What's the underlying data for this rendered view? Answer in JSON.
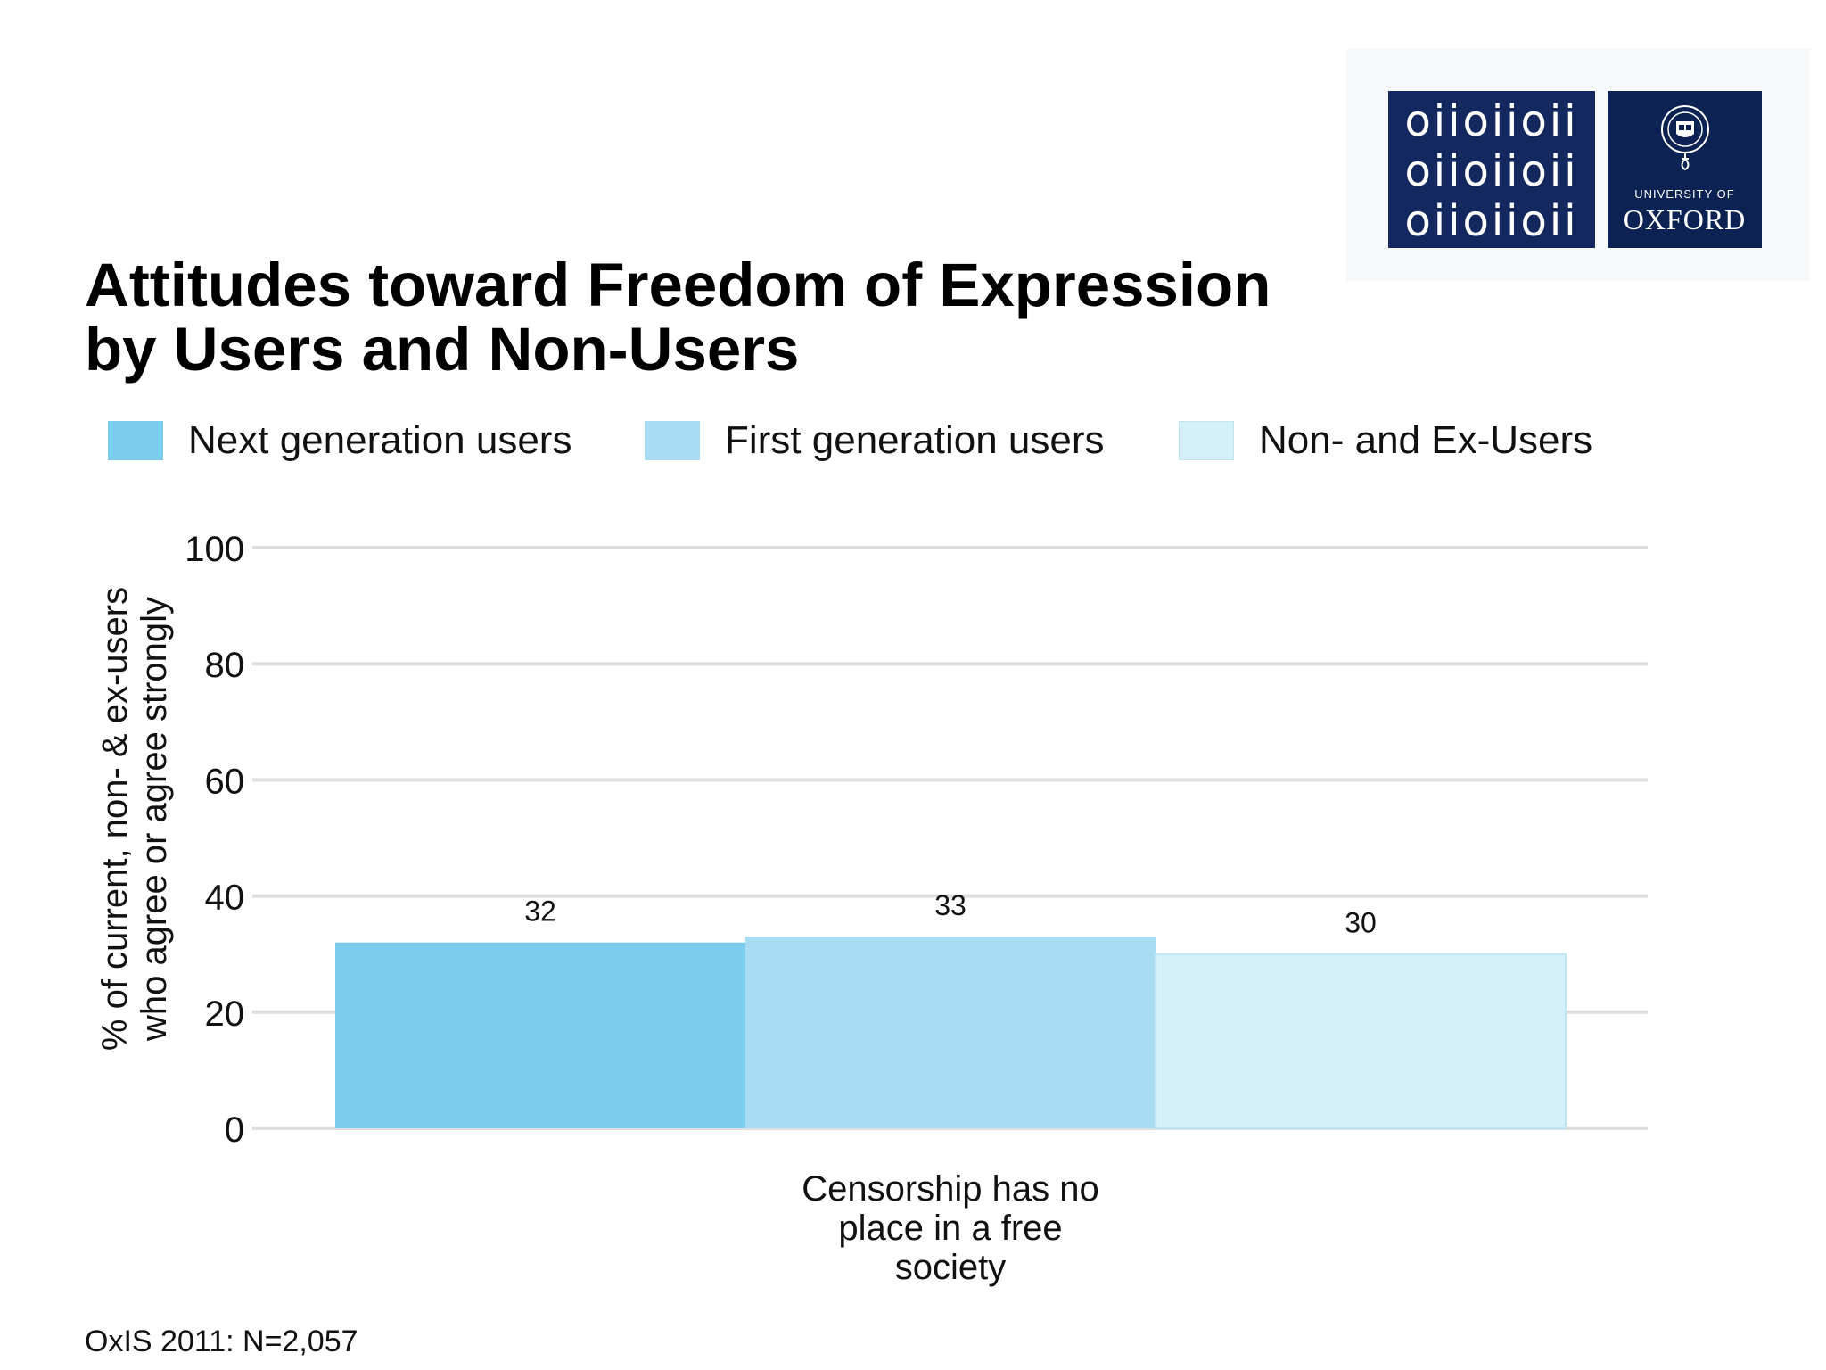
{
  "title": {
    "line1": "Attitudes toward Freedom of Expression",
    "line2": "by Users and Non-Users"
  },
  "logo": {
    "oii_rows": [
      "oiioiioii",
      "oiioiioii",
      "oiioiioii"
    ],
    "university_of": "UNIVERSITY OF",
    "oxford": "OXFORD",
    "oii_color": "#13285f",
    "oxford_color": "#0b2253"
  },
  "legend": [
    {
      "label": "Next generation users",
      "color": "#7bcdee"
    },
    {
      "label": "First generation users",
      "color": "#a8dcf3"
    },
    {
      "label": "Non- and Ex-Users",
      "color": "#d3eff8"
    }
  ],
  "y_axis_label": {
    "line1": "% of current, non- & ex-users",
    "line2": "who agree or agree strongly"
  },
  "footnote": "OxIS 2011: N=2,057",
  "chart_data": {
    "type": "bar",
    "categories": [
      "Censorship has no place in a free society"
    ],
    "category_label_lines": [
      "Censorship has no",
      "place in a free",
      "society"
    ],
    "series": [
      {
        "name": "Next generation users",
        "values": [
          32
        ],
        "color": "#7bcdee"
      },
      {
        "name": "First generation users",
        "values": [
          33
        ],
        "color": "#a8dcf3"
      },
      {
        "name": "Non- and Ex-Users",
        "values": [
          30
        ],
        "color": "#d3eff8"
      }
    ],
    "title": "Attitudes toward Freedom of Expression by Users and Non-Users",
    "xlabel": "",
    "ylabel": "% of current, non- & ex-users who agree or agree strongly",
    "ylim": [
      0,
      100
    ],
    "yticks": [
      0,
      20,
      40,
      60,
      80,
      100
    ],
    "grid": true,
    "legend_position": "top",
    "gridline_color": "#dedede"
  }
}
